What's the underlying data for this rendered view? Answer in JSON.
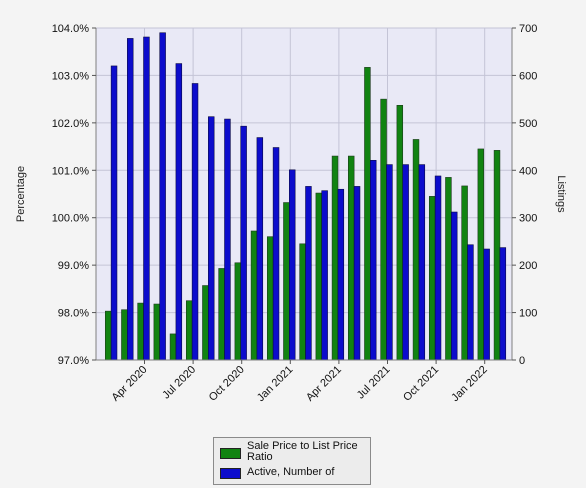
{
  "chart_data": {
    "type": "bar",
    "title": "",
    "left_axis": {
      "label": "Percentage",
      "range": [
        97.0,
        104.0
      ],
      "ticks": [
        "97.0%",
        "98.0%",
        "99.0%",
        "100.0%",
        "101.0%",
        "102.0%",
        "103.0%",
        "104.0%"
      ]
    },
    "right_axis": {
      "label": "Listings",
      "range": [
        0,
        700
      ],
      "ticks": [
        "0",
        "100",
        "200",
        "300",
        "400",
        "500",
        "600",
        "700"
      ]
    },
    "x_tick_labels": [
      "Apr 2020",
      "Jul 2020",
      "Oct 2020",
      "Jan 2021",
      "Apr 2021",
      "Jul 2021",
      "Oct 2021",
      "Jan 2022"
    ],
    "categories": [
      "2020-02",
      "2020-03",
      "2020-04",
      "2020-05",
      "2020-06",
      "2020-07",
      "2020-08",
      "2020-09",
      "2020-10",
      "2020-11",
      "2020-12",
      "2021-01",
      "2021-02",
      "2021-03",
      "2021-04",
      "2021-05",
      "2021-06",
      "2021-07",
      "2021-08",
      "2021-09",
      "2021-10",
      "2021-11",
      "2021-12",
      "2022-01",
      "2022-02"
    ],
    "series": [
      {
        "name": "Sale Price to List Price Ratio",
        "axis": "left",
        "color": "#118311",
        "values": [
          98.03,
          98.06,
          98.2,
          98.18,
          97.55,
          98.25,
          98.57,
          98.93,
          99.05,
          99.72,
          99.6,
          100.32,
          99.45,
          100.52,
          101.3,
          101.3,
          103.17,
          102.5,
          102.37,
          101.65,
          100.45,
          100.85,
          100.67,
          101.45,
          101.42
        ]
      },
      {
        "name": "Active, Number of",
        "axis": "right",
        "color": "#0c0ccc",
        "values": [
          620,
          678,
          681,
          690,
          625,
          583,
          513,
          508,
          493,
          469,
          448,
          401,
          366,
          357,
          360,
          366,
          421,
          412,
          412,
          412,
          388,
          312,
          243,
          234,
          237
        ]
      }
    ],
    "legend": {
      "position": "bottom",
      "items": [
        {
          "label": "Sale Price to List Price Ratio",
          "color": "#118311"
        },
        {
          "label": "Active, Number of",
          "color": "#0c0ccc"
        }
      ]
    },
    "grid": true
  }
}
